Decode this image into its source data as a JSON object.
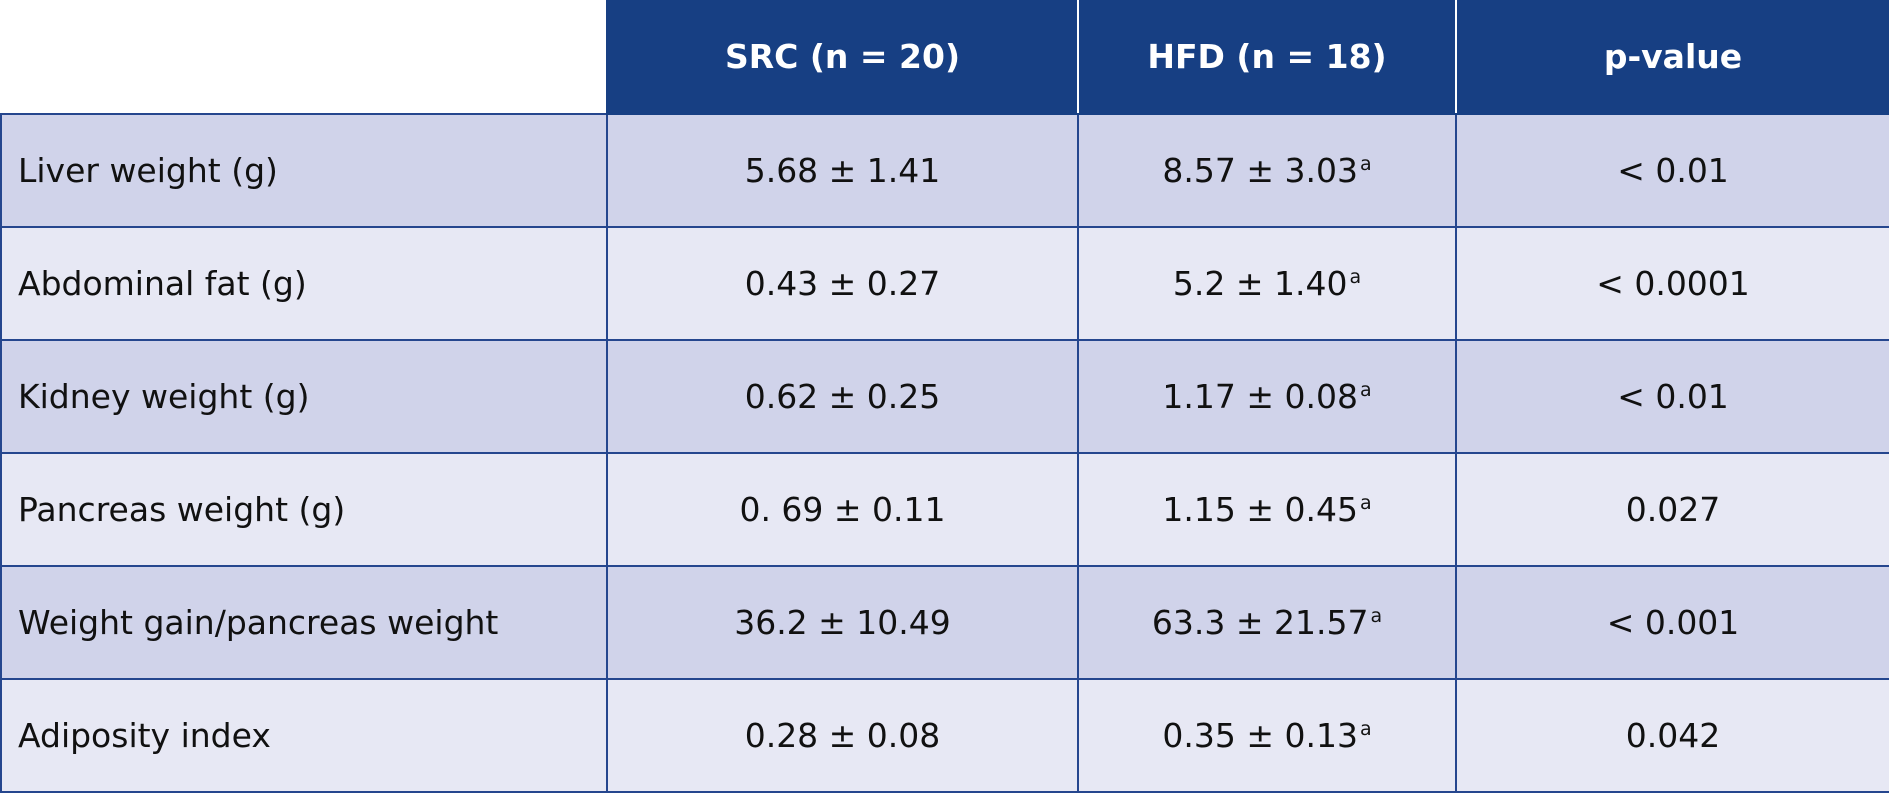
{
  "table": {
    "headers": [
      "SRC (n = 20)",
      "HFD (n = 18)",
      "p-value"
    ],
    "rows": [
      {
        "label": "Liver weight (g)",
        "src": "5.68 ± 1.41",
        "hfd": "8.57 ± 3.03",
        "hfd_sup": "a",
        "p": "< 0.01"
      },
      {
        "label": "Abdominal fat (g)",
        "src": "0.43 ± 0.27",
        "hfd": "5.2 ± 1.40",
        "hfd_sup": "a",
        "p": "< 0.0001"
      },
      {
        "label": "Kidney weight (g)",
        "src": "0.62 ± 0.25",
        "hfd": "1.17 ± 0.08",
        "hfd_sup": "a",
        "p": "< 0.01"
      },
      {
        "label": "Pancreas weight (g)",
        "src": "0. 69 ± 0.11",
        "hfd": "1.15 ± 0.45",
        "hfd_sup": "a",
        "p": "0.027"
      },
      {
        "label": "Weight gain/pancreas weight",
        "src": "36.2 ± 10.49",
        "hfd": "63.3 ± 21.57",
        "hfd_sup": "a",
        "p": "< 0.001"
      },
      {
        "label": "Adiposity index",
        "src": "0.28 ± 0.08",
        "hfd": "0.35 ± 0.13",
        "hfd_sup": "a",
        "p": "0.042"
      }
    ]
  }
}
